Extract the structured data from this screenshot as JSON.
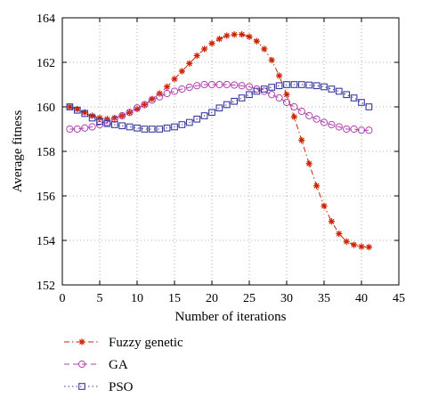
{
  "chart_data": {
    "type": "line",
    "xlabel": "Number of iterations",
    "ylabel": "Average fitness",
    "xlim": [
      0,
      45
    ],
    "ylim": [
      152,
      164
    ],
    "xticks": [
      0,
      5,
      10,
      15,
      20,
      25,
      30,
      35,
      40,
      45
    ],
    "yticks": [
      152,
      154,
      156,
      158,
      160,
      162,
      164
    ],
    "grid": "dotted",
    "legend": "bottom-left, below plot",
    "x": [
      1,
      2,
      3,
      4,
      5,
      6,
      7,
      8,
      9,
      10,
      11,
      12,
      13,
      14,
      15,
      16,
      17,
      18,
      19,
      20,
      21,
      22,
      23,
      24,
      25,
      26,
      27,
      28,
      29,
      30,
      31,
      32,
      33,
      34,
      35,
      36,
      37,
      38,
      39,
      40,
      41
    ],
    "series": [
      {
        "name": "Fuzzy genetic",
        "color": "#cc2200",
        "marker": "asterisk",
        "linestyle": "dash-dot",
        "values": [
          160.0,
          159.9,
          159.75,
          159.6,
          159.5,
          159.45,
          159.5,
          159.6,
          159.75,
          159.9,
          160.1,
          160.35,
          160.6,
          160.9,
          161.25,
          161.6,
          161.95,
          162.3,
          162.6,
          162.85,
          163.05,
          163.2,
          163.25,
          163.25,
          163.15,
          162.95,
          162.6,
          162.1,
          161.4,
          160.55,
          159.55,
          158.5,
          157.45,
          156.45,
          155.55,
          154.85,
          154.3,
          153.95,
          153.8,
          153.72,
          153.7
        ]
      },
      {
        "name": "GA",
        "color": "#b040b0",
        "marker": "circle",
        "linestyle": "dashed",
        "values": [
          159.0,
          159.0,
          159.05,
          159.1,
          159.2,
          159.3,
          159.45,
          159.6,
          159.75,
          159.95,
          160.1,
          160.3,
          160.45,
          160.6,
          160.7,
          160.8,
          160.88,
          160.95,
          161.0,
          161.0,
          161.0,
          161.0,
          160.98,
          160.95,
          160.9,
          160.8,
          160.7,
          160.55,
          160.4,
          160.2,
          160.0,
          159.8,
          159.6,
          159.45,
          159.3,
          159.2,
          159.1,
          159.0,
          159.0,
          158.95,
          158.95
        ]
      },
      {
        "name": "PSO",
        "color": "#3a3aa0",
        "marker": "square",
        "linestyle": "dotted",
        "values": [
          160.0,
          159.85,
          159.7,
          159.5,
          159.35,
          159.25,
          159.2,
          159.15,
          159.1,
          159.05,
          159.0,
          159.0,
          159.0,
          159.05,
          159.1,
          159.2,
          159.3,
          159.45,
          159.6,
          159.75,
          159.95,
          160.1,
          160.25,
          160.4,
          160.55,
          160.7,
          160.8,
          160.88,
          160.95,
          161.0,
          161.0,
          161.0,
          160.98,
          160.95,
          160.9,
          160.8,
          160.7,
          160.55,
          160.4,
          160.2,
          160.0
        ]
      }
    ]
  }
}
